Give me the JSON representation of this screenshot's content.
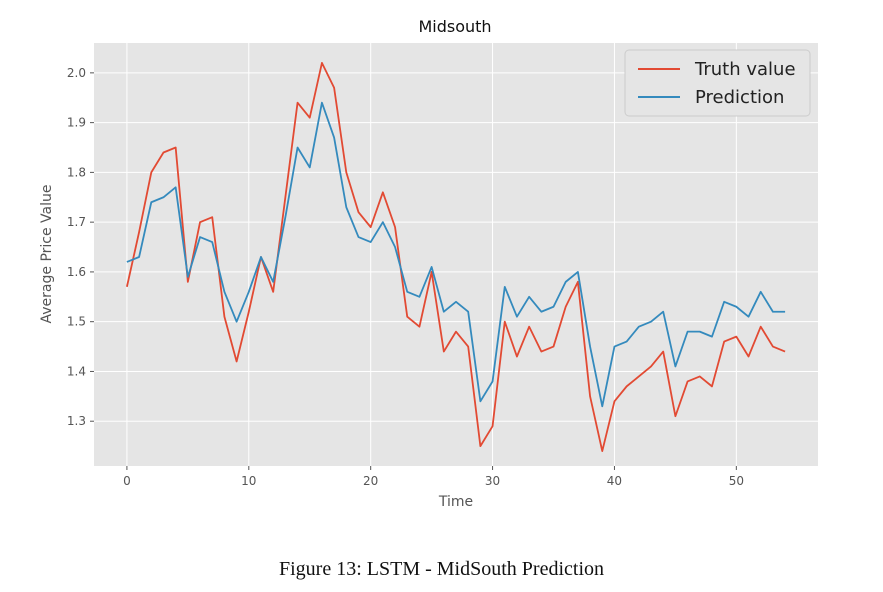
{
  "chart_data": {
    "type": "line",
    "title": "Midsouth",
    "xlabel": "Time",
    "ylabel": "Average Price Value",
    "xlim": [
      -2.7,
      56.7
    ],
    "ylim": [
      1.21,
      2.06
    ],
    "xticks": [
      0,
      10,
      20,
      30,
      40,
      50
    ],
    "yticks": [
      1.3,
      1.4,
      1.5,
      1.6,
      1.7,
      1.8,
      1.9,
      2.0
    ],
    "ytick_labels": [
      "1.3",
      "1.4",
      "1.5",
      "1.6",
      "1.7",
      "1.8",
      "1.9",
      "2.0"
    ],
    "grid": true,
    "legend_position": "upper-right",
    "x": [
      0,
      1,
      2,
      3,
      4,
      5,
      6,
      7,
      8,
      9,
      10,
      11,
      12,
      13,
      14,
      15,
      16,
      17,
      18,
      19,
      20,
      21,
      22,
      23,
      24,
      25,
      26,
      27,
      28,
      29,
      30,
      31,
      32,
      33,
      34,
      35,
      36,
      37,
      38,
      39,
      40,
      41,
      42,
      43,
      44,
      45,
      46,
      47,
      48,
      49,
      50,
      51,
      52,
      53,
      54
    ],
    "series": [
      {
        "name": "Truth value",
        "color": "#e24a33",
        "values": [
          1.57,
          1.68,
          1.8,
          1.84,
          1.85,
          1.58,
          1.7,
          1.71,
          1.51,
          1.42,
          1.52,
          1.63,
          1.56,
          1.75,
          1.94,
          1.91,
          2.02,
          1.97,
          1.8,
          1.72,
          1.69,
          1.76,
          1.69,
          1.51,
          1.49,
          1.6,
          1.44,
          1.48,
          1.45,
          1.25,
          1.29,
          1.5,
          1.43,
          1.49,
          1.44,
          1.45,
          1.53,
          1.58,
          1.35,
          1.24,
          1.34,
          1.37,
          1.39,
          1.41,
          1.44,
          1.31,
          1.38,
          1.39,
          1.37,
          1.46,
          1.47,
          1.43,
          1.49,
          1.45,
          1.44
        ]
      },
      {
        "name": "Prediction",
        "color": "#348abd",
        "values": [
          1.62,
          1.63,
          1.74,
          1.75,
          1.77,
          1.59,
          1.67,
          1.66,
          1.56,
          1.5,
          1.56,
          1.63,
          1.58,
          1.71,
          1.85,
          1.81,
          1.94,
          1.87,
          1.73,
          1.67,
          1.66,
          1.7,
          1.65,
          1.56,
          1.55,
          1.61,
          1.52,
          1.54,
          1.52,
          1.34,
          1.38,
          1.57,
          1.51,
          1.55,
          1.52,
          1.53,
          1.58,
          1.6,
          1.45,
          1.33,
          1.45,
          1.46,
          1.49,
          1.5,
          1.52,
          1.41,
          1.48,
          1.48,
          1.47,
          1.54,
          1.53,
          1.51,
          1.56,
          1.52,
          1.52
        ]
      }
    ]
  },
  "caption": "Figure 13: LSTM - MidSouth Prediction"
}
